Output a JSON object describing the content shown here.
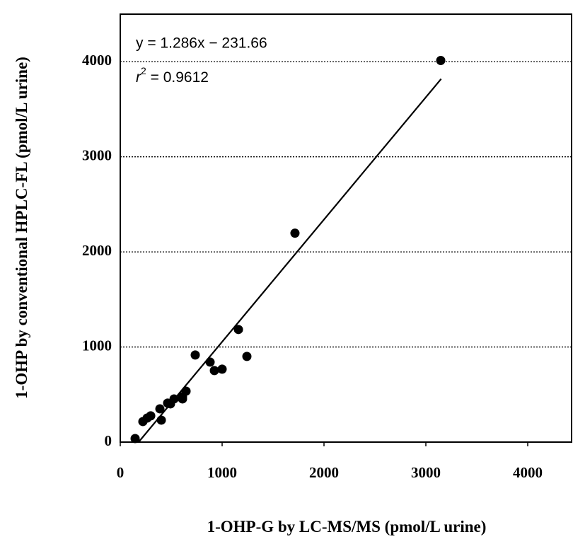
{
  "chart_data": {
    "type": "scatter",
    "x_label": "1-OHP-G by LC-MS/MS (pmol/L urine)",
    "y_label": "1-OHP by conventional HPLC-FL (pmol/L urine)",
    "annotations": {
      "equation": "y = 1.286x − 231.66",
      "r_squared": {
        "symbol": "r",
        "exponent": "2",
        "text": " = 0.9612"
      }
    },
    "series": [
      {
        "color": "#000000",
        "x": [
          146,
          222,
          264,
          299,
          389,
          403,
          465,
          493,
          528,
          611,
          611,
          646,
          736,
          882,
          924,
          1000,
          1160,
          1243,
          1715,
          3146
        ],
        "values": [
          37,
          216,
          253,
          276,
          350,
          231,
          410,
          402,
          454,
          477,
          454,
          536,
          916,
          841,
          752,
          767,
          1184,
          901,
          2197,
          4013
        ]
      }
    ],
    "fit_line": {
      "color": "#000000",
      "x": [
        180,
        3150
      ],
      "values": [
        0,
        3819
      ]
    },
    "xlim": [
      0,
      4450
    ],
    "ylim": [
      0,
      4500
    ],
    "xticks": [
      0,
      1000,
      2000,
      3000,
      4000
    ],
    "yticks": [
      0,
      1000,
      2000,
      3000,
      4000
    ],
    "grid": true
  }
}
